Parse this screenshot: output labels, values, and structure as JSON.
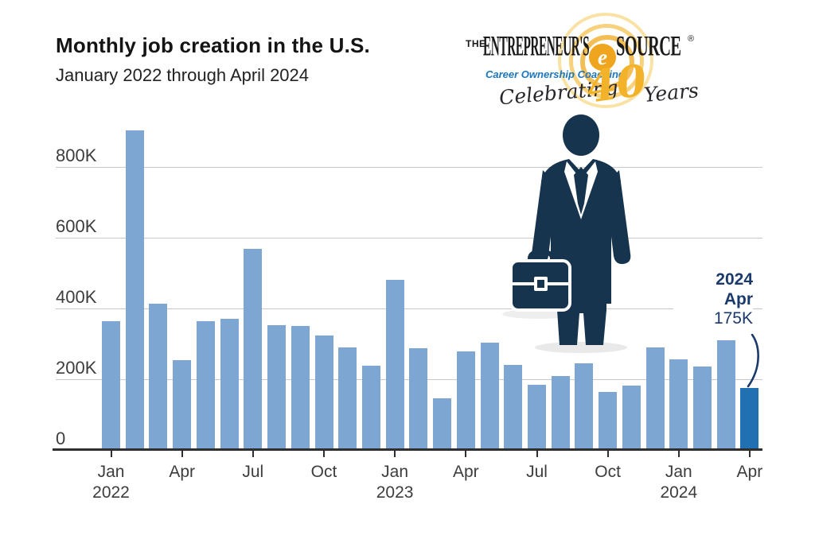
{
  "header": {
    "title": "Monthly job creation in the U.S.",
    "subtitle": "January 2022 through April 2024"
  },
  "logo": {
    "the": "THE",
    "entrepreneurs": "ENTREPRENEUR'S",
    "e": "e",
    "source": "SOURCE",
    "registered": "®",
    "tagline": "Career Ownership Coaching",
    "celebrating": "Celebrating",
    "forty": "40",
    "years": "Years",
    "colors": {
      "gold": "#F2B32B",
      "blue": "#1C76BC",
      "black": "#1A1A1A"
    }
  },
  "chart_data": {
    "type": "bar",
    "title": "Monthly job creation in the U.S.",
    "subtitle": "January 2022 through April 2024",
    "unit": "jobs (thousands)",
    "categories": [
      "Jan 2022",
      "Feb 2022",
      "Mar 2022",
      "Apr 2022",
      "May 2022",
      "Jun 2022",
      "Jul 2022",
      "Aug 2022",
      "Sep 2022",
      "Oct 2022",
      "Nov 2022",
      "Dec 2022",
      "Jan 2023",
      "Feb 2023",
      "Mar 2023",
      "Apr 2023",
      "May 2023",
      "Jun 2023",
      "Jul 2023",
      "Aug 2023",
      "Sep 2023",
      "Oct 2023",
      "Nov 2023",
      "Dec 2023",
      "Jan 2024",
      "Feb 2024",
      "Mar 2024",
      "Apr 2024"
    ],
    "values": [
      364,
      904,
      414,
      254,
      364,
      370,
      568,
      352,
      350,
      324,
      290,
      239,
      482,
      287,
      146,
      278,
      303,
      240,
      184,
      210,
      246,
      165,
      182,
      290,
      256,
      236,
      310,
      175
    ],
    "ylim": [
      0,
      900
    ],
    "yticks": [
      {
        "v": 0,
        "label": "0"
      },
      {
        "v": 200,
        "label": "200K"
      },
      {
        "v": 400,
        "label": "400K"
      },
      {
        "v": 600,
        "label": "600K"
      },
      {
        "v": 800,
        "label": "800K"
      }
    ],
    "xticks": [
      {
        "i": 0,
        "label": "Jan",
        "year": "2022"
      },
      {
        "i": 3,
        "label": "Apr"
      },
      {
        "i": 6,
        "label": "Jul"
      },
      {
        "i": 9,
        "label": "Oct"
      },
      {
        "i": 12,
        "label": "Jan",
        "year": "2023"
      },
      {
        "i": 15,
        "label": "Apr"
      },
      {
        "i": 18,
        "label": "Jul"
      },
      {
        "i": 21,
        "label": "Oct"
      },
      {
        "i": 24,
        "label": "Jan",
        "year": "2024"
      },
      {
        "i": 27,
        "label": "Apr"
      }
    ],
    "grid": true,
    "legend": false,
    "bar_color": "#7DA6D2",
    "highlight_color": "#2171B2",
    "highlight_index": 27,
    "annotation": {
      "year": "2024",
      "month": "Apr",
      "value": "175K"
    }
  }
}
